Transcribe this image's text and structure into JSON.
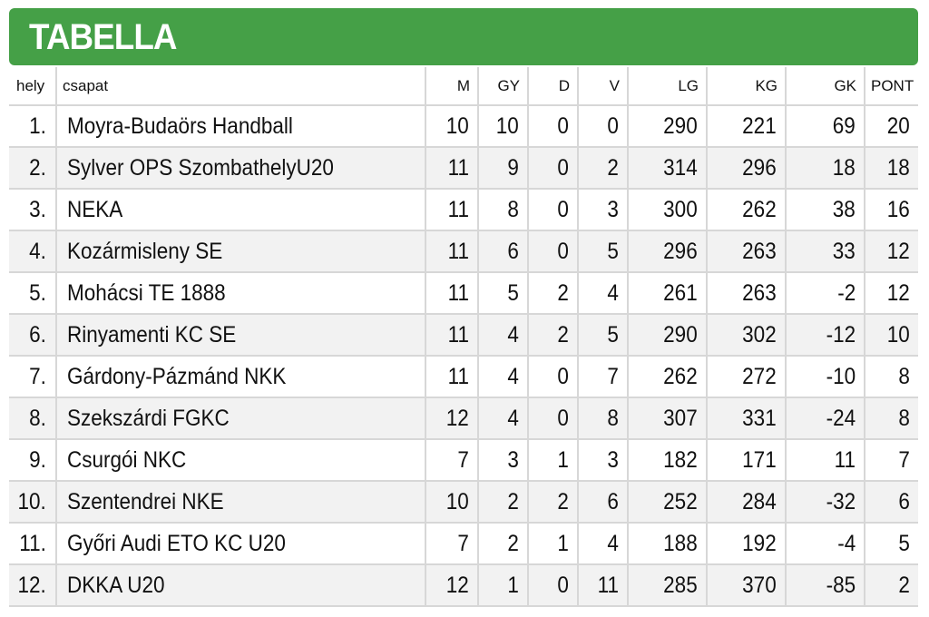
{
  "title": "TABELLA",
  "colors": {
    "header_bar": "#45a047",
    "title_text": "#ffffff",
    "row_alt": "#f2f2f2",
    "grid": "#d7d7d7"
  },
  "columns": [
    "hely",
    "csapat",
    "M",
    "GY",
    "D",
    "V",
    "LG",
    "KG",
    "GK",
    "PONT"
  ],
  "rows": [
    [
      "1.",
      "Moyra-Budaörs Handball",
      "10",
      "10",
      "0",
      "0",
      "290",
      "221",
      "69",
      "20"
    ],
    [
      "2.",
      "Sylver OPS SzombathelyU20",
      "11",
      "9",
      "0",
      "2",
      "314",
      "296",
      "18",
      "18"
    ],
    [
      "3.",
      "NEKA",
      "11",
      "8",
      "0",
      "3",
      "300",
      "262",
      "38",
      "16"
    ],
    [
      "4.",
      "Kozármisleny SE",
      "11",
      "6",
      "0",
      "5",
      "296",
      "263",
      "33",
      "12"
    ],
    [
      "5.",
      "Mohácsi TE 1888",
      "11",
      "5",
      "2",
      "4",
      "261",
      "263",
      "-2",
      "12"
    ],
    [
      "6.",
      "Rinyamenti KC SE",
      "11",
      "4",
      "2",
      "5",
      "290",
      "302",
      "-12",
      "10"
    ],
    [
      "7.",
      "Gárdony-Pázmánd NKK",
      "11",
      "4",
      "0",
      "7",
      "262",
      "272",
      "-10",
      "8"
    ],
    [
      "8.",
      "Szekszárdi FGKC",
      "12",
      "4",
      "0",
      "8",
      "307",
      "331",
      "-24",
      "8"
    ],
    [
      "9.",
      "Csurgói NKC",
      "7",
      "3",
      "1",
      "3",
      "182",
      "171",
      "11",
      "7"
    ],
    [
      "10.",
      "Szentendrei NKE",
      "10",
      "2",
      "2",
      "6",
      "252",
      "284",
      "-32",
      "6"
    ],
    [
      "11.",
      "Győri Audi ETO KC U20",
      "7",
      "2",
      "1",
      "4",
      "188",
      "192",
      "-4",
      "5"
    ],
    [
      "12.",
      "DKKA U20",
      "12",
      "1",
      "0",
      "11",
      "285",
      "370",
      "-85",
      "2"
    ]
  ]
}
